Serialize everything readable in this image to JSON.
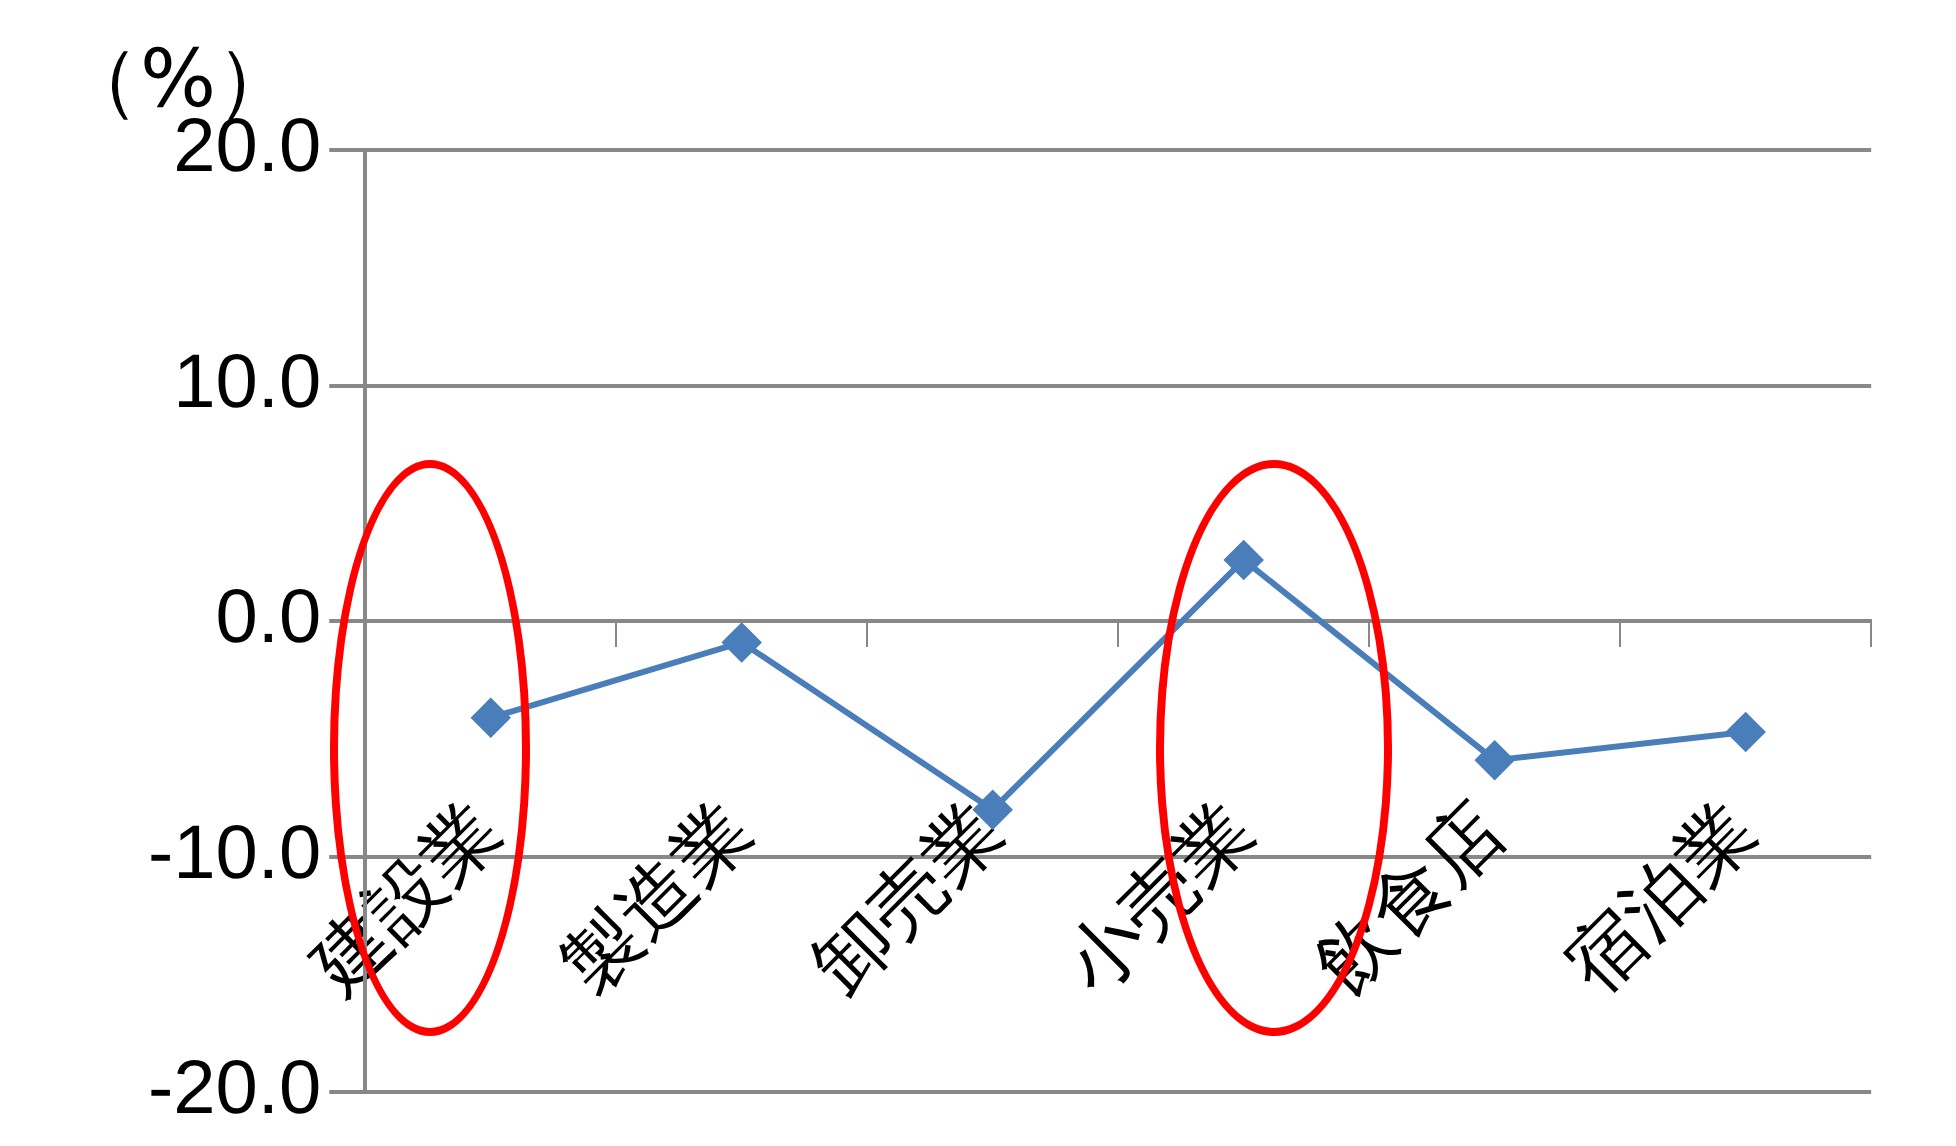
{
  "chart_data": {
    "type": "line",
    "ylabel": "（%）",
    "categories": [
      "建設業",
      "製造業",
      "卸売業",
      "小売業",
      "飲食店",
      "宿泊業"
    ],
    "series": [
      {
        "color": "#4a7ebb",
        "values": [
          -4.1,
          -0.9,
          -8.0,
          2.6,
          -5.9,
          -4.7
        ]
      }
    ],
    "ylim": [
      -20,
      20
    ],
    "yticks": [
      {
        "value": -20,
        "label": "-20.0"
      },
      {
        "value": -10,
        "label": "-10.0"
      },
      {
        "value": 0,
        "label": "0.0"
      },
      {
        "value": 10,
        "label": "10.0"
      },
      {
        "value": 20,
        "label": "20.0"
      }
    ],
    "grid": "y",
    "marker": "diamond",
    "line_style": "solid",
    "legend": false
  }
}
